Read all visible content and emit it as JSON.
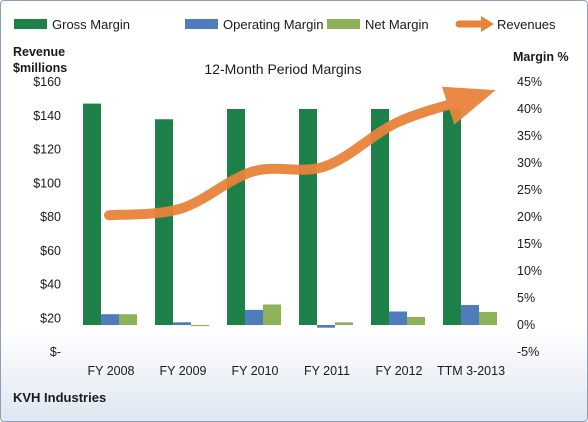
{
  "chart_data": {
    "type": "bar",
    "title": "12-Month Period Margins",
    "company": "KVH Industries",
    "left_axis_label_line1": "Revenue",
    "left_axis_label_line2": "$millions",
    "right_axis_label": "Margin %",
    "categories": [
      "FY 2008",
      "FY 2009",
      "FY 2010",
      "FY 2011",
      "FY 2012",
      "TTM 3-2013"
    ],
    "left_axis": {
      "ylim": [
        0,
        160
      ],
      "ticks": [
        0,
        20,
        40,
        60,
        80,
        100,
        120,
        140,
        160
      ],
      "tick_labels": [
        "$-",
        "$20",
        "$40",
        "$60",
        "$80",
        "$100",
        "$120",
        "$140",
        "$160"
      ]
    },
    "right_axis": {
      "ylim": [
        -5,
        45
      ],
      "ticks": [
        -5,
        0,
        5,
        10,
        15,
        20,
        25,
        30,
        35,
        40,
        45
      ],
      "tick_labels": [
        "-5%",
        "0%",
        "5%",
        "10%",
        "15%",
        "20%",
        "25%",
        "30%",
        "35%",
        "40%",
        "45%"
      ]
    },
    "series": [
      {
        "name": "Gross Margin",
        "type": "bar",
        "axis": "right",
        "color": "#1e8049",
        "values": [
          41.0,
          38.1,
          40.0,
          40.0,
          40.0,
          40.0
        ]
      },
      {
        "name": "Operating Margin",
        "type": "bar",
        "axis": "right",
        "color": "#4f7cba",
        "values": [
          2.0,
          0.5,
          2.8,
          -0.5,
          2.5,
          3.7
        ]
      },
      {
        "name": "Net Margin",
        "type": "bar",
        "axis": "right",
        "color": "#8fb15a",
        "values": [
          2.0,
          -0.2,
          3.8,
          0.5,
          1.5,
          2.4
        ]
      },
      {
        "name": "Revenues",
        "type": "line",
        "axis": "left",
        "color": "#e8833a",
        "values": [
          81,
          85,
          107,
          110,
          136,
          150
        ]
      }
    ],
    "legend_position": "top",
    "grid": false
  }
}
